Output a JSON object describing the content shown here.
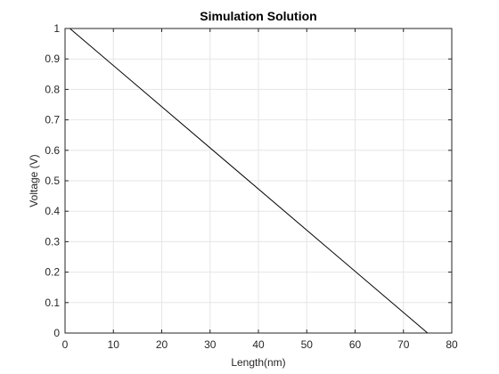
{
  "chart_data": {
    "type": "line",
    "title": "Simulation Solution",
    "xlabel": "Length(nm)",
    "ylabel": "Voltage (V)",
    "xlim": [
      0,
      80
    ],
    "ylim": [
      0,
      1
    ],
    "xticks": [
      "0",
      "10",
      "20",
      "30",
      "40",
      "50",
      "60",
      "70",
      "80"
    ],
    "yticks": [
      "0",
      "0.1",
      "0.2",
      "0.3",
      "0.4",
      "0.5",
      "0.6",
      "0.7",
      "0.8",
      "0.9",
      "1"
    ],
    "grid": true,
    "series": [
      {
        "x": [
          1,
          75
        ],
        "y": [
          1,
          0
        ],
        "color": "#000000"
      }
    ]
  }
}
